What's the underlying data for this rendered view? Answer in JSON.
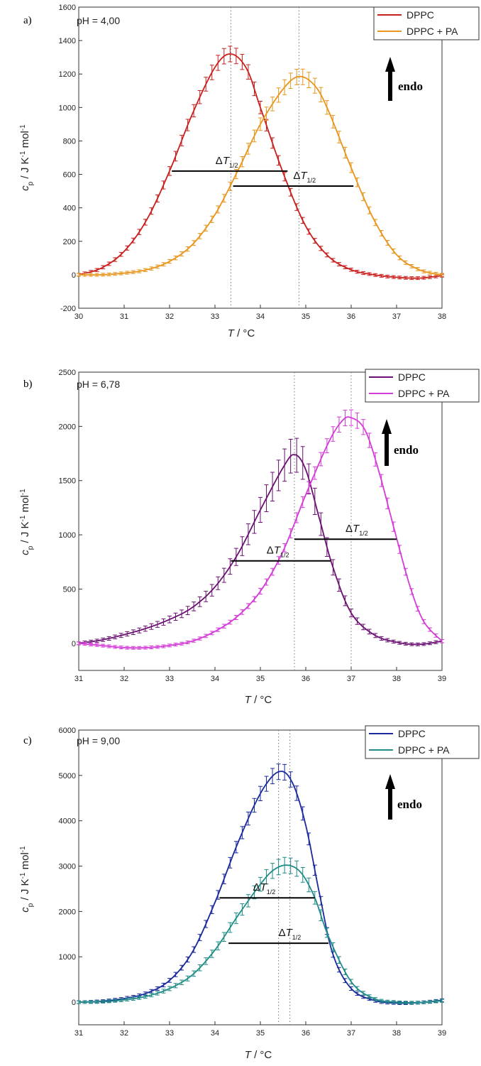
{
  "arrow_label": "endo",
  "x_label": "T / °C",
  "y_label_html": "c_p / J K^-1 mol^-1",
  "annotation_text": "ΔT",
  "annotation_sub": "1/2",
  "chart_data": [
    {
      "type": "line",
      "panel": "a)",
      "subtitle": "pH = 4,00",
      "xlim": [
        30,
        38
      ],
      "ylim": [
        -200,
        1600
      ],
      "xticks": [
        30,
        31,
        32,
        33,
        34,
        35,
        36,
        37,
        38
      ],
      "yticks": [
        -200,
        0,
        200,
        400,
        600,
        800,
        1000,
        1200,
        1400,
        1600
      ],
      "series": [
        {
          "name": "DPPC",
          "color": "#c8201e",
          "x": [
            30.0,
            30.5,
            31.0,
            31.5,
            32.0,
            32.5,
            33.0,
            33.35,
            33.7,
            34.0,
            34.5,
            35.0,
            35.5,
            36.0,
            36.5,
            37.0,
            37.5,
            38.0
          ],
          "y": [
            0,
            40,
            140,
            330,
            620,
            960,
            1240,
            1320,
            1230,
            1000,
            610,
            290,
            110,
            30,
            0,
            -15,
            -20,
            -5
          ]
        },
        {
          "name": "DPPC + PA",
          "color": "#e8961e",
          "x": [
            30.0,
            30.5,
            31.0,
            31.5,
            32.0,
            32.5,
            33.0,
            33.5,
            34.0,
            34.5,
            34.85,
            35.2,
            35.5,
            36.0,
            36.5,
            37.0,
            37.5,
            38.0
          ],
          "y": [
            0,
            0,
            10,
            30,
            80,
            180,
            360,
            620,
            900,
            1110,
            1185,
            1130,
            980,
            640,
            330,
            120,
            30,
            0
          ]
        }
      ],
      "peaks": [
        33.35,
        34.85
      ],
      "half_width_lines": [
        {
          "x1": 32.05,
          "x2": 34.6,
          "y": 620
        },
        {
          "x1": 33.4,
          "x2": 36.05,
          "y": 530
        }
      ]
    },
    {
      "type": "line",
      "panel": "b)",
      "subtitle": "pH = 6,78",
      "xlim": [
        31,
        39
      ],
      "ylim": [
        -250,
        2500
      ],
      "xticks": [
        31,
        32,
        33,
        34,
        35,
        36,
        37,
        38,
        39
      ],
      "yticks": [
        0,
        500,
        1000,
        1500,
        2000,
        2500
      ],
      "series": [
        {
          "name": "DPPC",
          "color": "#6a1072",
          "x": [
            31.0,
            31.5,
            32.0,
            32.5,
            33.0,
            33.5,
            34.0,
            34.5,
            35.0,
            35.5,
            35.75,
            36.0,
            36.3,
            36.6,
            37.0,
            37.5,
            38.0,
            38.5,
            39.0
          ],
          "y": [
            0,
            30,
            80,
            140,
            220,
            330,
            520,
            820,
            1230,
            1620,
            1740,
            1600,
            1150,
            700,
            280,
            80,
            10,
            -10,
            20
          ]
        },
        {
          "name": "DPPC + PA",
          "color": "#d43cd8",
          "x": [
            31.0,
            31.5,
            32.0,
            32.5,
            33.0,
            33.5,
            34.0,
            34.5,
            35.0,
            35.5,
            36.0,
            36.5,
            36.8,
            37.0,
            37.3,
            37.6,
            38.0,
            38.3,
            38.6,
            39.0
          ],
          "y": [
            0,
            -20,
            -40,
            -40,
            -20,
            20,
            110,
            250,
            480,
            850,
            1370,
            1850,
            2050,
            2080,
            1970,
            1600,
            970,
            520,
            200,
            20
          ]
        }
      ],
      "peaks": [
        35.75,
        37.0
      ],
      "half_width_lines": [
        {
          "x1": 34.35,
          "x2": 36.55,
          "y": 760
        },
        {
          "x1": 35.75,
          "x2": 38.0,
          "y": 960
        }
      ]
    },
    {
      "type": "line",
      "panel": "c)",
      "subtitle": "pH = 9,00",
      "xlim": [
        31,
        39
      ],
      "ylim": [
        -500,
        6000
      ],
      "xticks": [
        31,
        32,
        33,
        34,
        35,
        36,
        37,
        38,
        39
      ],
      "yticks": [
        0,
        1000,
        2000,
        3000,
        4000,
        5000,
        6000
      ],
      "series": [
        {
          "name": "DPPC",
          "color": "#1a2a9c",
          "x": [
            31.0,
            31.5,
            32.0,
            32.5,
            33.0,
            33.5,
            34.0,
            34.5,
            35.0,
            35.4,
            35.7,
            36.0,
            36.3,
            36.6,
            37.0,
            37.5,
            38.0,
            38.5,
            39.0
          ],
          "y": [
            0,
            20,
            80,
            200,
            480,
            1100,
            2200,
            3500,
            4600,
            5080,
            4850,
            3900,
            2400,
            1050,
            300,
            40,
            -20,
            -10,
            40
          ]
        },
        {
          "name": "DPPC + PA",
          "color": "#1f8c86",
          "x": [
            31.0,
            31.5,
            32.0,
            32.5,
            33.0,
            33.5,
            34.0,
            34.5,
            35.0,
            35.3,
            35.6,
            35.9,
            36.2,
            36.5,
            37.0,
            37.5,
            38.0,
            38.5,
            39.0
          ],
          "y": [
            0,
            10,
            50,
            130,
            300,
            600,
            1150,
            1900,
            2600,
            2920,
            3020,
            2850,
            2300,
            1450,
            450,
            80,
            0,
            -10,
            30
          ]
        }
      ],
      "peaks": [
        35.4,
        35.65
      ],
      "half_width_lines": [
        {
          "x1": 34.1,
          "x2": 36.2,
          "y": 2300
        },
        {
          "x1": 34.3,
          "x2": 36.5,
          "y": 1300
        }
      ]
    }
  ]
}
